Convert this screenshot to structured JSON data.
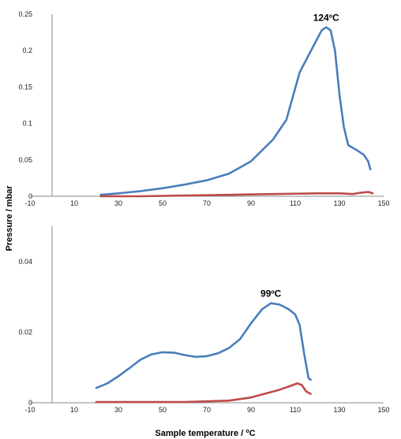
{
  "chart_data": [
    {
      "type": "line",
      "title": "",
      "xlabel": "",
      "ylabel": "Pressure / mbar",
      "xlim": [
        -10,
        150
      ],
      "ylim": [
        0,
        0.25
      ],
      "x_ticks": [
        "-10",
        "10",
        "30",
        "50",
        "70",
        "90",
        "110",
        "130",
        "150"
      ],
      "y_ticks": [
        "0",
        "0.05",
        "0.1",
        "0.15",
        "0.2",
        "0.25"
      ],
      "grid": false,
      "legend": "none",
      "annotation": {
        "text": "124°C",
        "x": 124,
        "y": 0.232
      },
      "series": [
        {
          "color": "#4a7ebb",
          "points": [
            [
              22,
              0.002
            ],
            [
              30,
              0.004
            ],
            [
              40,
              0.007
            ],
            [
              50,
              0.011
            ],
            [
              60,
              0.016
            ],
            [
              70,
              0.022
            ],
            [
              80,
              0.031
            ],
            [
              90,
              0.048
            ],
            [
              100,
              0.078
            ],
            [
              106,
              0.105
            ],
            [
              112,
              0.17
            ],
            [
              118,
              0.205
            ],
            [
              122,
              0.228
            ],
            [
              124,
              0.232
            ],
            [
              126,
              0.228
            ],
            [
              128,
              0.2
            ],
            [
              130,
              0.14
            ],
            [
              132,
              0.095
            ],
            [
              134,
              0.07
            ],
            [
              138,
              0.063
            ],
            [
              141,
              0.057
            ],
            [
              143,
              0.048
            ],
            [
              144,
              0.037
            ]
          ]
        },
        {
          "color": "#be4b48",
          "points": [
            [
              22,
              0.0
            ],
            [
              40,
              0.0
            ],
            [
              60,
              0.001
            ],
            [
              80,
              0.002
            ],
            [
              100,
              0.003
            ],
            [
              120,
              0.004
            ],
            [
              130,
              0.004
            ],
            [
              136,
              0.003
            ],
            [
              140,
              0.005
            ],
            [
              143,
              0.006
            ],
            [
              145,
              0.004
            ]
          ]
        }
      ]
    },
    {
      "type": "line",
      "title": "",
      "xlabel": "Sample temperature / °C",
      "ylabel": "Pressure / mbar",
      "xlim": [
        -10,
        150
      ],
      "ylim": [
        0,
        0.05
      ],
      "x_ticks": [
        "-10",
        "10",
        "30",
        "50",
        "70",
        "90",
        "110",
        "130",
        "150"
      ],
      "y_ticks": [
        "0",
        "0.02",
        "0.04"
      ],
      "grid": false,
      "legend": "none",
      "annotation": {
        "text": "99°C",
        "x": 99,
        "y": 0.0282
      },
      "series": [
        {
          "color": "#4a7ebb",
          "points": [
            [
              20,
              0.0042
            ],
            [
              25,
              0.0055
            ],
            [
              30,
              0.0075
            ],
            [
              35,
              0.0098
            ],
            [
              40,
              0.0122
            ],
            [
              45,
              0.0137
            ],
            [
              50,
              0.0143
            ],
            [
              55,
              0.0142
            ],
            [
              60,
              0.0135
            ],
            [
              65,
              0.013
            ],
            [
              70,
              0.0132
            ],
            [
              75,
              0.014
            ],
            [
              80,
              0.0155
            ],
            [
              85,
              0.018
            ],
            [
              90,
              0.0225
            ],
            [
              95,
              0.0265
            ],
            [
              99,
              0.0282
            ],
            [
              103,
              0.0278
            ],
            [
              107,
              0.0265
            ],
            [
              110,
              0.025
            ],
            [
              112,
              0.022
            ],
            [
              114,
              0.014
            ],
            [
              116,
              0.007
            ],
            [
              117,
              0.0065
            ]
          ]
        },
        {
          "color": "#be4b48",
          "points": [
            [
              20,
              0.0002
            ],
            [
              40,
              0.0002
            ],
            [
              60,
              0.0002
            ],
            [
              80,
              0.0006
            ],
            [
              90,
              0.0015
            ],
            [
              96,
              0.0025
            ],
            [
              102,
              0.0035
            ],
            [
              108,
              0.0048
            ],
            [
              111,
              0.0055
            ],
            [
              113,
              0.005
            ],
            [
              115,
              0.0032
            ],
            [
              117,
              0.0025
            ]
          ]
        }
      ]
    }
  ]
}
